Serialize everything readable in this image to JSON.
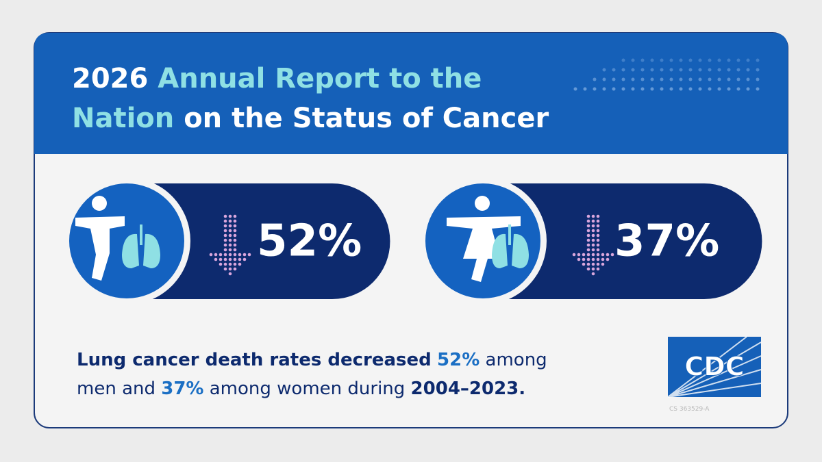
{
  "header": {
    "title_parts": [
      "2026",
      "Annual Report to the",
      "Nation",
      "on the Status of Cancer"
    ]
  },
  "stats": [
    {
      "value": "52%"
    },
    {
      "value": "37%"
    }
  ],
  "caption": {
    "parts": [
      "Lung cancer death rates decreased",
      "52%",
      "among",
      "men and",
      "37%",
      "among women during",
      "2004–2023."
    ]
  },
  "logo": {
    "text": "CDC",
    "code": "CS 363529-A"
  }
}
